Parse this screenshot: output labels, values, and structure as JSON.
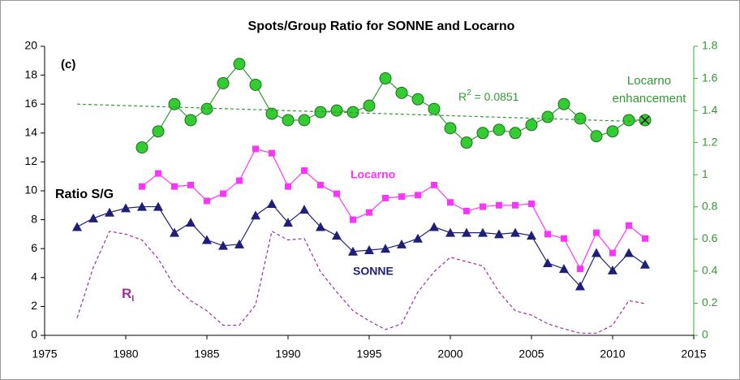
{
  "chart_data": {
    "type": "line",
    "title": "Spots/Group Ratio for SONNE and Locarno",
    "xlim": [
      1975,
      2015
    ],
    "xticks": [
      1975,
      1980,
      1985,
      1990,
      1995,
      2000,
      2005,
      2010,
      2015
    ],
    "ylim": [
      0,
      20
    ],
    "yticks": [
      0,
      2,
      4,
      6,
      8,
      10,
      12,
      14,
      16,
      18,
      20
    ],
    "y2lim": [
      0,
      1.8
    ],
    "y2ticks": [
      0,
      0.2,
      0.4,
      0.6,
      0.8,
      1,
      1.2,
      1.4,
      1.6,
      1.8
    ],
    "grid": false,
    "annotations": {
      "panel": "(c)",
      "ylabel": "Ratio S/G"
    },
    "series": [
      {
        "name": "SONNE",
        "color": "#1f1f7a",
        "marker": "triangle",
        "axis": "y",
        "x": [
          1977,
          1978,
          1979,
          1980,
          1981,
          1982,
          1983,
          1984,
          1985,
          1986,
          1987,
          1988,
          1989,
          1990,
          1991,
          1992,
          1993,
          1994,
          1995,
          1996,
          1997,
          1998,
          1999,
          2000,
          2001,
          2002,
          2003,
          2004,
          2005,
          2006,
          2007,
          2008,
          2009,
          2010,
          2011,
          2012
        ],
        "values": [
          7.5,
          8.1,
          8.5,
          8.8,
          8.9,
          8.9,
          7.1,
          7.8,
          6.6,
          6.2,
          6.3,
          8.3,
          9.1,
          7.8,
          8.7,
          7.5,
          6.9,
          5.8,
          5.9,
          6.0,
          6.3,
          6.7,
          7.5,
          7.1,
          7.1,
          7.1,
          7.0,
          7.1,
          6.9,
          5.0,
          4.6,
          3.4,
          5.7,
          4.5,
          5.7,
          4.9
        ]
      },
      {
        "name": "Locarno",
        "color": "#ff33ff",
        "marker": "square",
        "axis": "y",
        "x": [
          1981,
          1982,
          1983,
          1984,
          1985,
          1986,
          1987,
          1988,
          1989,
          1990,
          1991,
          1992,
          1993,
          1994,
          1995,
          1996,
          1997,
          1998,
          1999,
          2000,
          2001,
          2002,
          2003,
          2004,
          2005,
          2006,
          2007,
          2008,
          2009,
          2010,
          2011,
          2012
        ],
        "values": [
          10.3,
          11.2,
          10.3,
          10.4,
          9.3,
          9.8,
          10.7,
          12.9,
          12.6,
          10.3,
          11.4,
          10.4,
          9.8,
          8.0,
          8.5,
          9.5,
          9.6,
          9.7,
          10.4,
          9.2,
          8.6,
          8.9,
          9.0,
          9.0,
          9.1,
          7.0,
          6.7,
          4.6,
          7.1,
          5.7,
          7.6,
          6.7
        ]
      },
      {
        "name": "Locarno enhancement",
        "color": "#33cc33",
        "marker": "circle",
        "axis": "y2",
        "x": [
          1981,
          1982,
          1983,
          1984,
          1985,
          1986,
          1987,
          1988,
          1989,
          1990,
          1991,
          1992,
          1993,
          1994,
          1995,
          1996,
          1997,
          1998,
          1999,
          2000,
          2001,
          2002,
          2003,
          2004,
          2005,
          2006,
          2007,
          2008,
          2009,
          2010,
          2011,
          2012
        ],
        "values": [
          1.17,
          1.27,
          1.44,
          1.34,
          1.41,
          1.57,
          1.69,
          1.56,
          1.38,
          1.34,
          1.34,
          1.39,
          1.4,
          1.39,
          1.43,
          1.6,
          1.51,
          1.47,
          1.41,
          1.29,
          1.2,
          1.26,
          1.28,
          1.26,
          1.31,
          1.36,
          1.44,
          1.35,
          1.24,
          1.27,
          1.34,
          1.34
        ]
      },
      {
        "label": {
          "text": "R",
          "sub": "I"
        },
        "color": "#993399",
        "marker": "none",
        "dash": true,
        "axis": "y",
        "x": [
          1977,
          1978,
          1979,
          1980,
          1981,
          1982,
          1983,
          1984,
          1985,
          1986,
          1987,
          1988,
          1989,
          1990,
          1991,
          1992,
          1993,
          1994,
          1995,
          1996,
          1997,
          1998,
          1999,
          2000,
          2001,
          2002,
          2003,
          2004,
          2005,
          2006,
          2007,
          2008,
          2009,
          2010,
          2011,
          2012
        ],
        "values": [
          1.2,
          4.7,
          7.2,
          7.0,
          6.6,
          5.3,
          3.4,
          2.4,
          1.7,
          0.7,
          0.7,
          2.1,
          7.2,
          6.6,
          6.7,
          4.4,
          3.0,
          1.7,
          1.0,
          0.4,
          0.8,
          3.0,
          4.4,
          5.4,
          5.1,
          4.8,
          3.0,
          1.7,
          1.4,
          0.8,
          0.45,
          0.15,
          0.15,
          0.7,
          2.4,
          2.2
        ]
      },
      {
        "label": {
          "text": "R",
          "sup": "2",
          "rest": " = 0.0851"
        },
        "color": "#339933",
        "marker": "none",
        "dash": true,
        "axis": "y2",
        "x": [
          1977,
          2012
        ],
        "values": [
          1.44,
          1.33
        ]
      }
    ]
  }
}
